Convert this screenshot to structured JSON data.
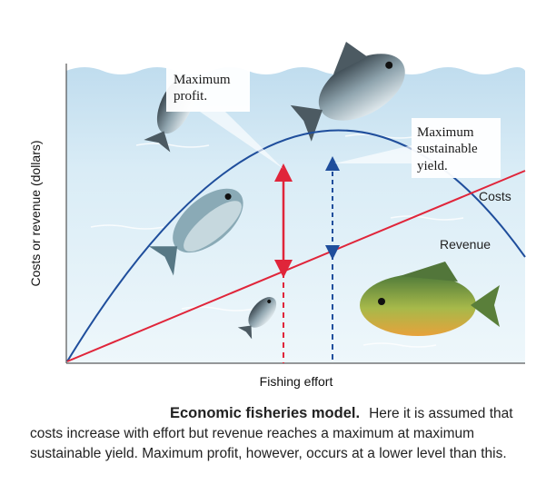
{
  "figure": {
    "callouts": {
      "max_profit": [
        "Maximum",
        "profit."
      ],
      "msy": [
        "Maximum",
        "sustainable",
        "yield."
      ]
    },
    "labels": {
      "costs": "Costs",
      "revenue": "Revenue",
      "x_axis": "Fishing effort",
      "y_axis": "Costs or revenue (dollars)"
    },
    "colors": {
      "revenue_curve": "#1f4e9c",
      "cost_line": "#e0253a",
      "water_top": "#cfe6f3",
      "water_bottom": "#eaf5fb",
      "sky": "#ffffff"
    },
    "icons": [
      "fish-icon",
      "fish-icon",
      "fish-icon",
      "fish-icon",
      "fish-icon"
    ]
  },
  "caption": {
    "title": "Economic fisheries model.",
    "body": "Here it is assumed that costs increase with effort but revenue reaches a maximum at maximum sustainable yield. Maximum profit, however, occurs at a lower level than this."
  }
}
